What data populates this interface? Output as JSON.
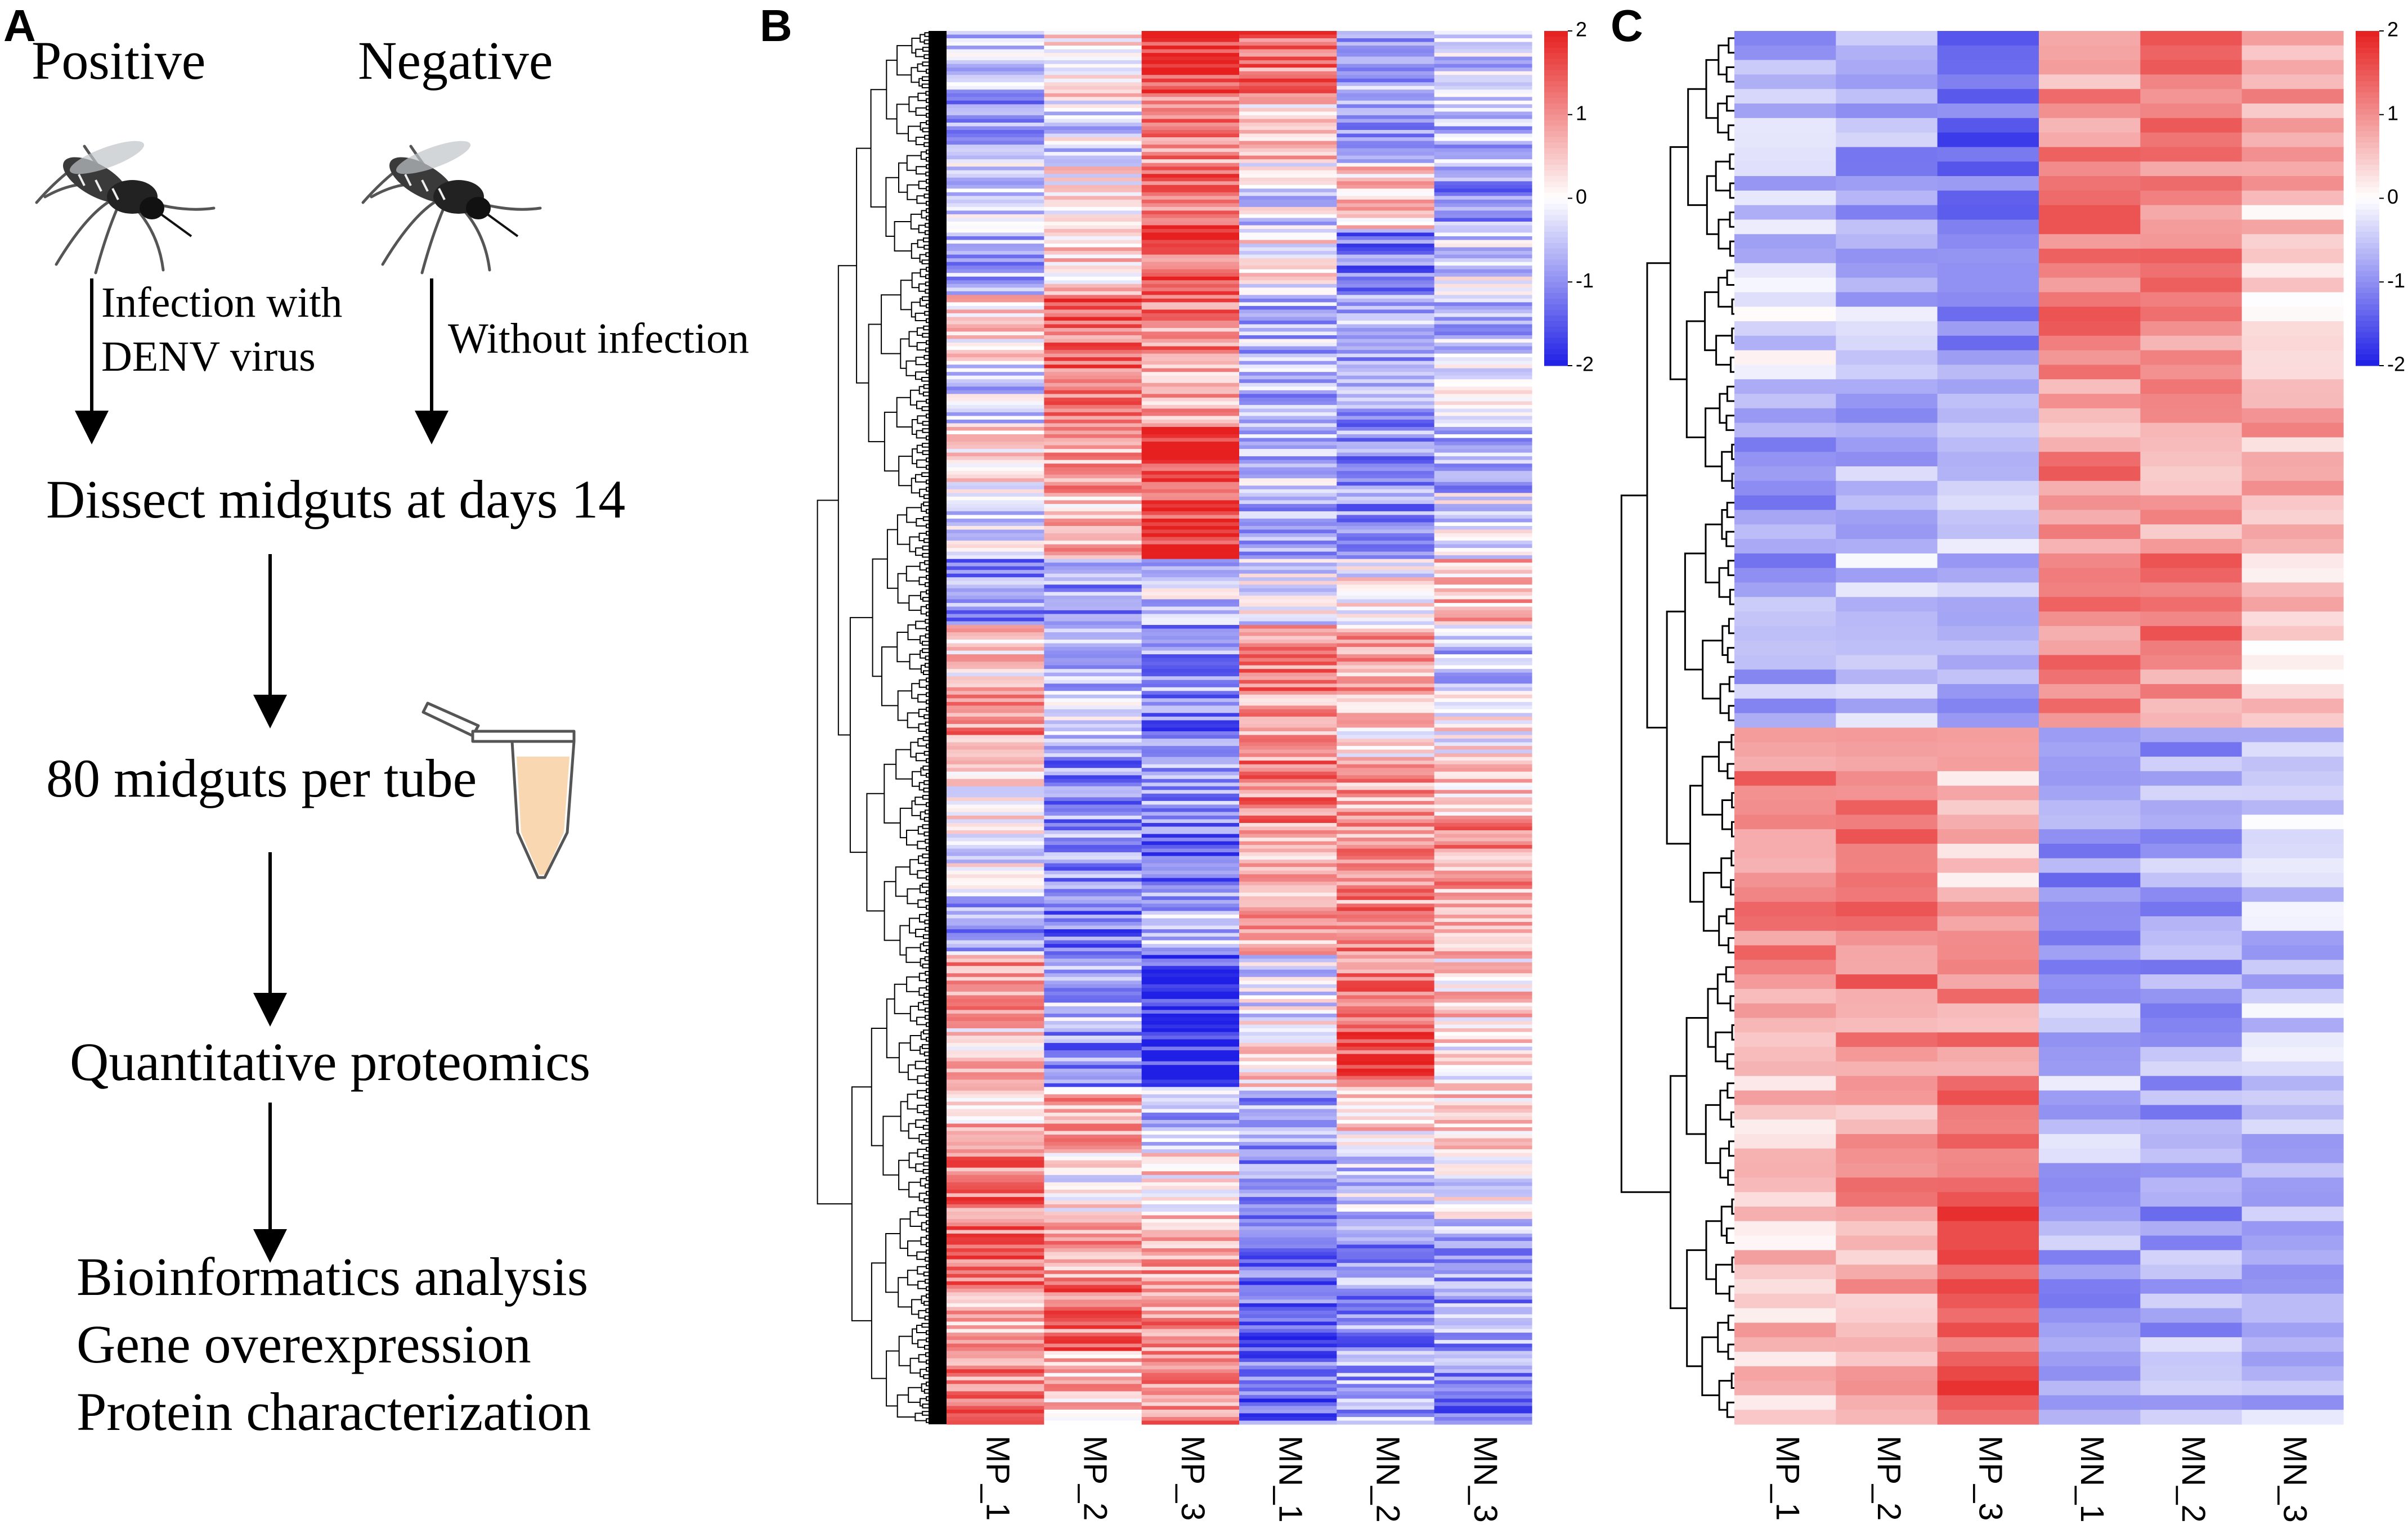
{
  "panels": {
    "a": {
      "letter": "A",
      "positive_label": "Positive",
      "negative_label": "Negative",
      "positive_arrow_label_lines": [
        "Infection with",
        "DENV virus"
      ],
      "negative_arrow_label": "Without infection",
      "steps": [
        "Dissect midguts at days 14",
        "80 midguts per tube",
        "Quantitative proteomics"
      ],
      "final_outcomes": [
        "Bioinformatics analysis",
        "Gene overexpression",
        "Protein characterization"
      ],
      "mosquito_icon": "mosquito-icon",
      "tube_icon": "microcentrifuge-tube-icon",
      "tube_fill_color": "#f9d7b0"
    },
    "b": {
      "letter": "B"
    },
    "c": {
      "letter": "C"
    }
  },
  "chart_data": [
    {
      "type": "heatmap",
      "panel": "B",
      "title": "",
      "columns": [
        "MP_1",
        "MP_2",
        "MP_3",
        "MN_1",
        "MN_2",
        "MN_3"
      ],
      "row_count": 380,
      "row_dendrogram": true,
      "colorbar": {
        "ticks": [
          2,
          1,
          0,
          -1,
          -2
        ],
        "range": [
          -2,
          2
        ],
        "low_color": "#1f1fe6",
        "mid_color": "#ffffff",
        "high_color": "#e61f1f"
      },
      "blocks": [
        {
          "rows": 18,
          "values": [
            -0.6,
            0.2,
            1.8,
            1.2,
            -0.9,
            -0.4
          ]
        },
        {
          "rows": 18,
          "values": [
            -0.8,
            -0.3,
            1.0,
            0.5,
            -0.8,
            -0.7
          ]
        },
        {
          "rows": 18,
          "values": [
            -0.5,
            0.1,
            1.3,
            -0.3,
            0.6,
            -1.0
          ]
        },
        {
          "rows": 18,
          "values": [
            -0.7,
            0.4,
            1.4,
            0.1,
            -1.1,
            -0.3
          ]
        },
        {
          "rows": 18,
          "values": [
            0.3,
            1.3,
            1.1,
            -0.6,
            -0.8,
            -0.5
          ]
        },
        {
          "rows": 18,
          "values": [
            -0.4,
            1.4,
            0.6,
            -0.8,
            -1.0,
            -0.3
          ]
        },
        {
          "rows": 18,
          "values": [
            0.2,
            0.9,
            1.8,
            -0.5,
            -0.9,
            -0.7
          ]
        },
        {
          "rows": 18,
          "values": [
            -0.3,
            0.6,
            1.7,
            -0.6,
            -0.9,
            -0.2
          ]
        },
        {
          "rows": 18,
          "values": [
            -1.0,
            -0.9,
            -0.4,
            -0.2,
            0.0,
            0.6
          ]
        },
        {
          "rows": 18,
          "values": [
            0.4,
            -0.8,
            -0.9,
            1.1,
            0.8,
            -0.5
          ]
        },
        {
          "rows": 18,
          "values": [
            1.0,
            -0.4,
            -1.2,
            0.9,
            0.3,
            0.1
          ]
        },
        {
          "rows": 18,
          "values": [
            0.2,
            -1.0,
            -0.9,
            1.1,
            0.9,
            0.6
          ]
        },
        {
          "rows": 18,
          "values": [
            -0.2,
            -0.9,
            -1.3,
            0.8,
            0.8,
            0.9
          ]
        },
        {
          "rows": 18,
          "values": [
            -0.8,
            -1.2,
            -0.7,
            0.9,
            1.0,
            0.6
          ]
        },
        {
          "rows": 18,
          "values": [
            0.9,
            -0.6,
            -1.7,
            -0.3,
            1.1,
            0.4
          ]
        },
        {
          "rows": 18,
          "values": [
            0.4,
            -1.0,
            -1.8,
            0.3,
            1.6,
            0.2
          ]
        },
        {
          "rows": 18,
          "values": [
            0.6,
            0.7,
            -0.6,
            -0.8,
            0.3,
            0.5
          ]
        },
        {
          "rows": 18,
          "values": [
            1.2,
            0.1,
            0.3,
            -1.0,
            -0.5,
            -0.2
          ]
        },
        {
          "rows": 18,
          "values": [
            1.3,
            0.9,
            0.8,
            -1.2,
            -0.9,
            -0.8
          ]
        },
        {
          "rows": 18,
          "values": [
            0.8,
            1.2,
            1.0,
            -1.4,
            -1.0,
            -0.9
          ]
        },
        {
          "rows": 20,
          "values": [
            1.1,
            0.6,
            1.0,
            -1.3,
            -0.8,
            -1.1
          ]
        }
      ]
    },
    {
      "type": "heatmap",
      "panel": "C",
      "title": "",
      "columns": [
        "MP_1",
        "MP_2",
        "MP_3",
        "MN_1",
        "MN_2",
        "MN_3"
      ],
      "row_count": 96,
      "row_dendrogram": true,
      "colorbar": {
        "ticks": [
          2,
          1,
          0,
          -1,
          -2
        ],
        "range": [
          -2,
          2
        ],
        "low_color": "#1f1fe6",
        "mid_color": "#ffffff",
        "high_color": "#e61f1f"
      },
      "blocks": [
        {
          "rows": 6,
          "values": [
            -0.7,
            -0.6,
            -1.2,
            0.9,
            1.3,
            0.8
          ]
        },
        {
          "rows": 6,
          "values": [
            -0.6,
            -0.8,
            -1.3,
            1.0,
            1.1,
            0.6
          ]
        },
        {
          "rows": 6,
          "values": [
            -0.5,
            -0.7,
            -1.4,
            1.1,
            1.2,
            0.4
          ]
        },
        {
          "rows": 6,
          "values": [
            -0.3,
            -0.6,
            -1.0,
            1.2,
            1.0,
            0.2
          ]
        },
        {
          "rows": 6,
          "values": [
            -0.9,
            -0.8,
            -0.6,
            0.9,
            1.0,
            0.7
          ]
        },
        {
          "rows": 6,
          "values": [
            -0.8,
            -0.7,
            -0.5,
            1.1,
            0.9,
            0.8
          ]
        },
        {
          "rows": 6,
          "values": [
            -0.9,
            -0.5,
            -0.7,
            1.0,
            1.1,
            0.5
          ]
        },
        {
          "rows": 6,
          "values": [
            -0.7,
            -0.6,
            -0.8,
            1.2,
            1.0,
            0.3
          ]
        },
        {
          "rows": 6,
          "values": [
            1.1,
            1.0,
            0.6,
            -0.9,
            -0.8,
            -0.6
          ]
        },
        {
          "rows": 6,
          "values": [
            0.9,
            1.3,
            0.5,
            -1.0,
            -0.7,
            -0.3
          ]
        },
        {
          "rows": 6,
          "values": [
            1.0,
            1.2,
            0.8,
            -0.8,
            -0.9,
            -0.5
          ]
        },
        {
          "rows": 6,
          "values": [
            0.8,
            1.0,
            1.0,
            -0.7,
            -0.8,
            -0.4
          ]
        },
        {
          "rows": 6,
          "values": [
            0.5,
            0.8,
            1.3,
            -0.6,
            -0.9,
            -0.7
          ]
        },
        {
          "rows": 6,
          "values": [
            0.3,
            0.9,
            1.5,
            -0.7,
            -1.0,
            -0.6
          ]
        },
        {
          "rows": 6,
          "values": [
            0.6,
            0.7,
            1.6,
            -0.8,
            -0.8,
            -0.7
          ]
        },
        {
          "rows": 6,
          "values": [
            0.4,
            0.8,
            1.5,
            -0.9,
            -0.7,
            -0.6
          ]
        }
      ]
    }
  ]
}
